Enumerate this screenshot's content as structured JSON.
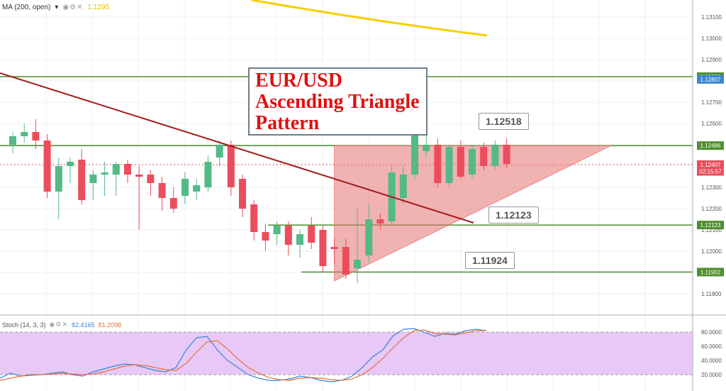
{
  "indicators": {
    "ma": {
      "label": "MA (200, open)",
      "value": "1.1295",
      "color": "#f5d000"
    },
    "stoch": {
      "label": "Stoch (14, 3, 3)",
      "k_value": "82.4165",
      "d_value": "81.2098",
      "k_color": "#3a86d4",
      "d_color": "#e8703a"
    }
  },
  "annotations": {
    "title_lines": [
      "EUR/USD",
      "Ascending Triangle",
      "Pattern"
    ],
    "callouts": [
      "1.12518",
      "1.12123",
      "1.11924"
    ]
  },
  "colors": {
    "up": "#53b987",
    "down": "#eb4d5c",
    "hline": "#4f8f2f",
    "trend": "#a31b1b",
    "triangle": "#e57373"
  },
  "chart_data": {
    "type": "candlestick",
    "y_axis": {
      "range": [
        1.117,
        1.1318
      ],
      "ticks": [
        "1.13100",
        "1.13000",
        "1.12900",
        "1.12800",
        "1.12700",
        "1.12600",
        "1.12500",
        "1.12400",
        "1.12300",
        "1.12200",
        "1.12100",
        "1.12000",
        "1.11900",
        "1.11800"
      ]
    },
    "price_tags": [
      {
        "label": "1.12820",
        "value": 1.1282,
        "color": "#4f8f2f"
      },
      {
        "label": "1.12807",
        "value": 1.12807,
        "color": "#3a86d4"
      },
      {
        "label": "1.12496",
        "value": 1.12496,
        "color": "#4f8f2f"
      },
      {
        "label": "1.12407",
        "value": 1.12407,
        "color": "#eb4d5c"
      },
      {
        "label": "02:15:57",
        "value": 1.12375,
        "color": "#eb4d5c"
      },
      {
        "label": "1.12123",
        "value": 1.12123,
        "color": "#4f8f2f"
      },
      {
        "label": "1.11902",
        "value": 1.11902,
        "color": "#4f8f2f"
      }
    ],
    "horizontal_levels": [
      1.1282,
      1.12496,
      1.12123,
      1.11902
    ],
    "candles": [
      [
        1.125,
        1.1256,
        1.1246,
        1.1254
      ],
      [
        1.1254,
        1.126,
        1.1251,
        1.1256
      ],
      [
        1.1256,
        1.1262,
        1.1248,
        1.1252
      ],
      [
        1.1252,
        1.1255,
        1.1225,
        1.1228
      ],
      [
        1.1228,
        1.1244,
        1.1215,
        1.124
      ],
      [
        1.124,
        1.1244,
        1.1232,
        1.1242
      ],
      [
        1.1243,
        1.1248,
        1.1222,
        1.1224
      ],
      [
        1.1232,
        1.1238,
        1.1224,
        1.1236
      ],
      [
        1.1236,
        1.1242,
        1.1226,
        1.1237
      ],
      [
        1.1236,
        1.1242,
        1.1226,
        1.1241
      ],
      [
        1.1241,
        1.1243,
        1.1232,
        1.1236
      ],
      [
        1.1236,
        1.124,
        1.121,
        1.1235
      ],
      [
        1.1236,
        1.1238,
        1.1226,
        1.1232
      ],
      [
        1.1232,
        1.1235,
        1.1219,
        1.1225
      ],
      [
        1.1225,
        1.123,
        1.1218,
        1.122
      ],
      [
        1.1226,
        1.1237,
        1.1222,
        1.1234
      ],
      [
        1.1228,
        1.1234,
        1.1224,
        1.1231
      ],
      [
        1.123,
        1.1245,
        1.1228,
        1.1242
      ],
      [
        1.1244,
        1.1252,
        1.124,
        1.125
      ],
      [
        1.125,
        1.1252,
        1.1226,
        1.123
      ],
      [
        1.1234,
        1.1236,
        1.1216,
        1.122
      ],
      [
        1.1222,
        1.1224,
        1.1205,
        1.1209
      ],
      [
        1.1209,
        1.1213,
        1.12,
        1.1205
      ],
      [
        1.1208,
        1.1214,
        1.1203,
        1.1212
      ],
      [
        1.1212,
        1.1214,
        1.1198,
        1.1203
      ],
      [
        1.1203,
        1.121,
        1.1197,
        1.1208
      ],
      [
        1.1212,
        1.1216,
        1.1201,
        1.1204
      ],
      [
        1.121,
        1.1212,
        1.119,
        1.1193
      ],
      [
        1.1202,
        1.1206,
        1.1194,
        1.1201
      ],
      [
        1.1202,
        1.1206,
        1.1187,
        1.1189
      ],
      [
        1.1192,
        1.122,
        1.1185,
        1.1196
      ],
      [
        1.1198,
        1.1222,
        1.1195,
        1.1215
      ],
      [
        1.1215,
        1.1218,
        1.121,
        1.1213
      ],
      [
        1.1214,
        1.124,
        1.1212,
        1.1237
      ],
      [
        1.1225,
        1.124,
        1.1222,
        1.1236
      ],
      [
        1.1236,
        1.1262,
        1.1234,
        1.1256
      ],
      [
        1.1247,
        1.1255,
        1.1244,
        1.125
      ],
      [
        1.125,
        1.1253,
        1.123,
        1.1232
      ],
      [
        1.1232,
        1.125,
        1.123,
        1.1249
      ],
      [
        1.1249,
        1.1252,
        1.1234,
        1.1235
      ],
      [
        1.1236,
        1.125,
        1.1234,
        1.1248
      ],
      [
        1.1249,
        1.1251,
        1.1238,
        1.124
      ],
      [
        1.124,
        1.1252,
        1.1238,
        1.125
      ],
      [
        1.125,
        1.1253,
        1.1239,
        1.1241
      ]
    ],
    "stochastic": {
      "range": [
        0,
        100
      ],
      "ticks": [
        "80.0000",
        "60.0000",
        "40.0000",
        "20.0000"
      ],
      "overbought": 80,
      "oversold": 20,
      "k": [
        15,
        22,
        18,
        20,
        20,
        22,
        24,
        20,
        18,
        24,
        28,
        32,
        35,
        34,
        30,
        26,
        24,
        30,
        55,
        72,
        74,
        55,
        40,
        30,
        20,
        15,
        12,
        12,
        14,
        18,
        16,
        12,
        10,
        12,
        18,
        30,
        45,
        55,
        75,
        84,
        85,
        80,
        74,
        78,
        77,
        82,
        84,
        82
      ],
      "d": [
        12,
        15,
        18,
        19,
        20,
        21,
        22,
        21,
        20,
        21,
        24,
        28,
        32,
        34,
        33,
        30,
        27,
        26,
        36,
        52,
        66,
        68,
        56,
        42,
        30,
        22,
        16,
        13,
        12,
        15,
        16,
        15,
        13,
        12,
        14,
        20,
        30,
        43,
        58,
        72,
        82,
        83,
        78,
        77,
        76,
        79,
        82,
        82
      ]
    }
  }
}
